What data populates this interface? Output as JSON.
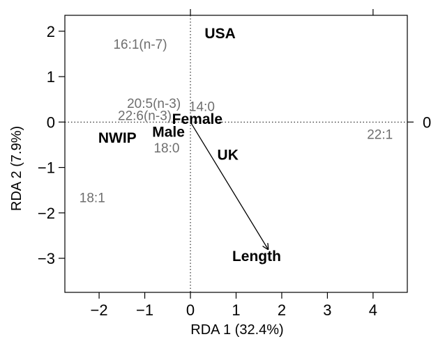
{
  "chart_data": {
    "type": "scatter",
    "xlabel": "RDA 1 (32.4%)",
    "ylabel": "RDA 2 (7.9%)",
    "xlim": [
      -2.75,
      4.75
    ],
    "ylim": [
      -3.75,
      2.35
    ],
    "x_ticks": [
      {
        "value": -2,
        "label": "−2"
      },
      {
        "value": -1,
        "label": "−1"
      },
      {
        "value": 0,
        "label": "0"
      },
      {
        "value": 1,
        "label": "1"
      },
      {
        "value": 2,
        "label": "2"
      },
      {
        "value": 3,
        "label": "3"
      },
      {
        "value": 4,
        "label": "4"
      }
    ],
    "y_ticks": [
      {
        "value": 2,
        "label": "2"
      },
      {
        "value": 1,
        "label": "1"
      },
      {
        "value": 0,
        "label": "0"
      },
      {
        "value": -1,
        "label": "−1"
      },
      {
        "value": -2,
        "label": "−2"
      },
      {
        "value": -3,
        "label": "−3"
      }
    ],
    "right_axis_ticks": [
      {
        "value": 0,
        "label": "0"
      }
    ],
    "reference_lines": {
      "x": 0,
      "y": 0,
      "style": "dotted"
    },
    "species_scores": [
      {
        "label": "16:1(n-7)",
        "x": -1.1,
        "y": 1.72
      },
      {
        "label": "20:5(n-3)",
        "x": -0.8,
        "y": 0.42
      },
      {
        "label": "14:0",
        "x": 0.25,
        "y": 0.35
      },
      {
        "label": "22:6(n-3)",
        "x": -1.0,
        "y": 0.15
      },
      {
        "label": "18:0",
        "x": -0.52,
        "y": -0.56
      },
      {
        "label": "18:1",
        "x": -2.15,
        "y": -1.66
      },
      {
        "label": "22:1",
        "x": 4.15,
        "y": -0.26
      }
    ],
    "site_scores": [
      {
        "label": "USA",
        "x": 0.65,
        "y": 1.95
      },
      {
        "label": "Female",
        "x": 0.15,
        "y": 0.07
      },
      {
        "label": "Male",
        "x": -0.48,
        "y": -0.22
      },
      {
        "label": "NWIP",
        "x": -1.6,
        "y": -0.35
      },
      {
        "label": "UK",
        "x": 0.82,
        "y": -0.72
      },
      {
        "label": "Length",
        "x": 1.45,
        "y": -2.95
      }
    ],
    "vector": {
      "label": "Length",
      "x_start": 0,
      "y_start": 0,
      "x_end": 1.7,
      "y_end": -2.8
    }
  }
}
